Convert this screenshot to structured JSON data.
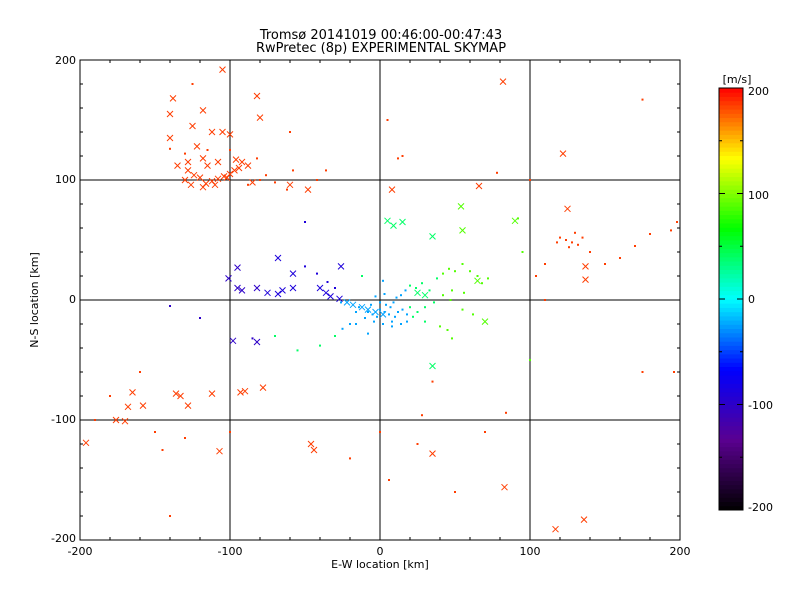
{
  "chart_data": {
    "type": "scatter",
    "title": "Tromsø 20141019 00:46:00-00:47:43",
    "subtitle": "RwPretec (8p) EXPERIMENTAL SKYMAP",
    "xlabel": "E-W location [km]",
    "ylabel": "N-S location [km]",
    "xlim": [
      -200,
      200
    ],
    "ylim": [
      -200,
      200
    ],
    "xticks": [
      "-200",
      "-100",
      "0",
      "100",
      "200"
    ],
    "yticks": [
      "200",
      "100",
      "0",
      "-100",
      "-200"
    ],
    "grid": true,
    "colorbar": {
      "label": "[m/s]",
      "range": [
        -200,
        200
      ],
      "ticks": [
        "200",
        "100",
        "0",
        "-100",
        "-200"
      ],
      "colormap": [
        "#000000",
        "#5a0090",
        "#0000ff",
        "#00ffff",
        "#00ff00",
        "#ffff00",
        "#ff0000"
      ]
    },
    "series": [
      {
        "marker": "x",
        "points": [
          [
            -105,
            192
          ],
          [
            -138,
            168
          ],
          [
            -82,
            170
          ],
          [
            -118,
            158
          ],
          [
            -140,
            155
          ],
          [
            -80,
            152
          ],
          [
            -125,
            145
          ],
          [
            -112,
            140
          ],
          [
            -140,
            135
          ],
          [
            -105,
            140
          ],
          [
            -100,
            138
          ],
          [
            -122,
            128
          ],
          [
            -118,
            118
          ],
          [
            -128,
            115
          ],
          [
            -135,
            112
          ],
          [
            -108,
            115
          ],
          [
            -115,
            112
          ],
          [
            -96,
            117
          ],
          [
            -92,
            115
          ],
          [
            -88,
            112
          ],
          [
            -94,
            110
          ],
          [
            -97,
            108
          ],
          [
            -100,
            105
          ],
          [
            -104,
            103
          ],
          [
            -108,
            101
          ],
          [
            -112,
            99
          ],
          [
            -116,
            97
          ],
          [
            -120,
            102
          ],
          [
            -124,
            104
          ],
          [
            -128,
            108
          ],
          [
            -130,
            100
          ],
          [
            -126,
            96
          ],
          [
            -118,
            94
          ],
          [
            -110,
            96
          ],
          [
            -102,
            102
          ],
          [
            -85,
            98
          ],
          [
            -60,
            96
          ],
          [
            -48,
            92
          ],
          [
            66,
            95
          ],
          [
            82,
            182
          ],
          [
            122,
            122
          ],
          [
            125,
            76
          ],
          [
            90,
            66
          ],
          [
            54,
            78
          ],
          [
            35,
            53
          ],
          [
            55,
            58
          ],
          [
            -68,
            35
          ],
          [
            -58,
            22
          ],
          [
            -65,
            8
          ],
          [
            -26,
            28
          ],
          [
            -101,
            18
          ],
          [
            -95,
            27
          ],
          [
            -95,
            10
          ],
          [
            -92,
            8
          ],
          [
            -82,
            10
          ],
          [
            -75,
            6
          ],
          [
            -68,
            5
          ],
          [
            -58,
            10
          ],
          [
            -40,
            10
          ],
          [
            -36,
            6
          ],
          [
            -33,
            3
          ],
          [
            -27,
            1
          ],
          [
            -22,
            -2
          ],
          [
            -18,
            -4
          ],
          [
            -12,
            -6
          ],
          [
            -8,
            -8
          ],
          [
            -3,
            -10
          ],
          [
            2,
            -12
          ],
          [
            8,
            92
          ],
          [
            5,
            66
          ],
          [
            9,
            62
          ],
          [
            15,
            65
          ],
          [
            -98,
            -34
          ],
          [
            -82,
            -35
          ],
          [
            -78,
            -73
          ],
          [
            -90,
            -76
          ],
          [
            -93,
            -77
          ],
          [
            -136,
            -78
          ],
          [
            -133,
            -80
          ],
          [
            -128,
            -88
          ],
          [
            -112,
            -78
          ],
          [
            -165,
            -77
          ],
          [
            -168,
            -89
          ],
          [
            -176,
            -100
          ],
          [
            -170,
            -101
          ],
          [
            -158,
            -88
          ],
          [
            -196,
            -119
          ],
          [
            -107,
            -126
          ],
          [
            -46,
            -120
          ],
          [
            -44,
            -125
          ],
          [
            35,
            -55
          ],
          [
            35,
            -128
          ],
          [
            70,
            -18
          ],
          [
            83,
            -156
          ],
          [
            117,
            -191
          ],
          [
            136,
            -183
          ],
          [
            137,
            17
          ],
          [
            137,
            28
          ],
          [
            65,
            16
          ],
          [
            30,
            4
          ],
          [
            25,
            6
          ]
        ]
      },
      {
        "marker": "dot",
        "points": [
          [
            -8,
            -10
          ],
          [
            -5,
            -12
          ],
          [
            -2,
            -14
          ],
          [
            0,
            -8
          ],
          [
            3,
            -10
          ],
          [
            6,
            -12
          ],
          [
            10,
            -14
          ],
          [
            -10,
            -15
          ],
          [
            -4,
            -18
          ],
          [
            2,
            -20
          ],
          [
            8,
            -18
          ],
          [
            12,
            -10
          ],
          [
            15,
            -8
          ],
          [
            18,
            -12
          ],
          [
            20,
            -6
          ],
          [
            -14,
            -6
          ],
          [
            -16,
            -10
          ],
          [
            -6,
            -4
          ],
          [
            0,
            -2
          ],
          [
            4,
            -4
          ],
          [
            7,
            -6
          ],
          [
            9,
            -2
          ],
          [
            11,
            2
          ],
          [
            14,
            4
          ],
          [
            17,
            8
          ],
          [
            20,
            12
          ],
          [
            24,
            10
          ],
          [
            28,
            14
          ],
          [
            33,
            8
          ],
          [
            38,
            18
          ],
          [
            42,
            22
          ],
          [
            46,
            26
          ],
          [
            50,
            24
          ],
          [
            55,
            30
          ],
          [
            60,
            24
          ],
          [
            65,
            20
          ],
          [
            68,
            14
          ],
          [
            72,
            18
          ],
          [
            56,
            6
          ],
          [
            48,
            8
          ],
          [
            42,
            4
          ],
          [
            36,
            -2
          ],
          [
            30,
            -6
          ],
          [
            25,
            -10
          ],
          [
            22,
            -14
          ],
          [
            18,
            -18
          ],
          [
            14,
            -20
          ],
          [
            30,
            -18
          ],
          [
            40,
            -22
          ],
          [
            45,
            -25
          ],
          [
            -20,
            -20
          ],
          [
            -25,
            -24
          ],
          [
            -30,
            -30
          ],
          [
            -40,
            -38
          ],
          [
            -55,
            -42
          ],
          [
            -70,
            -30
          ],
          [
            -85,
            -32
          ],
          [
            -120,
            -15
          ],
          [
            -140,
            -5
          ],
          [
            -160,
            -60
          ],
          [
            -180,
            -80
          ],
          [
            -190,
            -100
          ],
          [
            -150,
            -110
          ],
          [
            -145,
            -125
          ],
          [
            -130,
            -115
          ],
          [
            -100,
            -110
          ],
          [
            -20,
            -132
          ],
          [
            0,
            -110
          ],
          [
            50,
            -160
          ],
          [
            70,
            -110
          ],
          [
            84,
            -94
          ],
          [
            100,
            -50
          ],
          [
            110,
            0
          ],
          [
            128,
            48
          ],
          [
            124,
            50
          ],
          [
            120,
            52
          ],
          [
            132,
            46
          ],
          [
            135,
            52
          ],
          [
            130,
            56
          ],
          [
            126,
            44
          ],
          [
            118,
            48
          ],
          [
            140,
            40
          ],
          [
            150,
            30
          ],
          [
            160,
            35
          ],
          [
            170,
            45
          ],
          [
            180,
            55
          ],
          [
            198,
            65
          ],
          [
            194,
            58
          ],
          [
            175,
            -60
          ],
          [
            196,
            -60
          ],
          [
            110,
            30
          ],
          [
            104,
            20
          ],
          [
            95,
            40
          ],
          [
            92,
            68
          ],
          [
            100,
            100
          ],
          [
            78,
            106
          ],
          [
            15,
            120
          ],
          [
            12,
            118
          ],
          [
            3,
            5
          ],
          [
            -3,
            3
          ],
          [
            2,
            16
          ],
          [
            -12,
            20
          ],
          [
            -50,
            65
          ],
          [
            -62,
            92
          ],
          [
            -70,
            98
          ],
          [
            -76,
            104
          ],
          [
            -80,
            100
          ],
          [
            -88,
            96
          ],
          [
            -125,
            180
          ],
          [
            -115,
            125
          ],
          [
            -130,
            122
          ],
          [
            -140,
            126
          ],
          [
            -100,
            125
          ],
          [
            -82,
            118
          ],
          [
            -36,
            108
          ],
          [
            -42,
            100
          ],
          [
            -60,
            140
          ],
          [
            -58,
            108
          ],
          [
            5,
            150
          ],
          [
            175,
            167
          ],
          [
            47,
            0
          ],
          [
            55,
            -8
          ],
          [
            62,
            -12
          ],
          [
            48,
            -32
          ],
          [
            8,
            -22
          ],
          [
            -8,
            -28
          ],
          [
            -26,
            -2
          ],
          [
            -30,
            10
          ],
          [
            -35,
            15
          ],
          [
            -42,
            22
          ],
          [
            -50,
            28
          ],
          [
            35,
            -68
          ],
          [
            28,
            -96
          ],
          [
            25,
            -120
          ],
          [
            6,
            -150
          ],
          [
            -140,
            -180
          ],
          [
            -16,
            -20
          ]
        ]
      }
    ]
  }
}
